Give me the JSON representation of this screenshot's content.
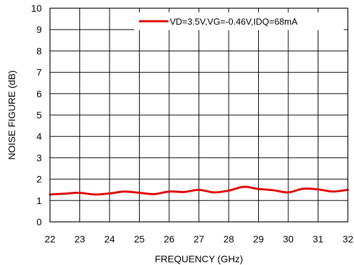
{
  "chart_data": {
    "type": "line",
    "title": "",
    "xlabel": "FREQUENCY (GHz)",
    "ylabel": "NOISE FIGURE (dB)",
    "xlim": [
      22,
      32
    ],
    "ylim": [
      0,
      10
    ],
    "x_ticks": [
      22,
      23,
      24,
      25,
      26,
      27,
      28,
      29,
      30,
      31,
      32
    ],
    "y_ticks": [
      0,
      1,
      2,
      3,
      4,
      5,
      6,
      7,
      8,
      9,
      10
    ],
    "grid": true,
    "legend_position": "top-right",
    "series": [
      {
        "name": "VD=3.5V,VG=-0.46V,IDQ=68mA",
        "color": "#e00000",
        "x": [
          22,
          22.5,
          23,
          23.5,
          24,
          24.5,
          25,
          25.5,
          26,
          26.5,
          27,
          27.5,
          28,
          28.5,
          29,
          29.5,
          30,
          30.5,
          31,
          31.5,
          32
        ],
        "y": [
          1.28,
          1.32,
          1.36,
          1.28,
          1.33,
          1.42,
          1.36,
          1.3,
          1.42,
          1.4,
          1.5,
          1.38,
          1.46,
          1.64,
          1.54,
          1.48,
          1.38,
          1.55,
          1.52,
          1.42,
          1.5
        ]
      }
    ]
  }
}
